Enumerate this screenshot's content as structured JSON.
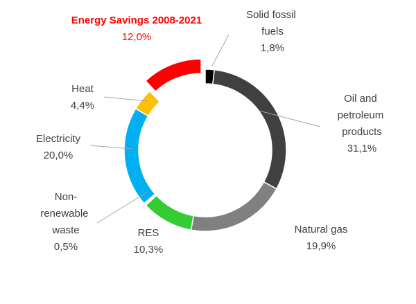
{
  "chart_data": {
    "type": "donut",
    "categories": [
      "Solid fossil fuels",
      "Oil and petroleum products",
      "Natural gas",
      "RES",
      "Non-renewable waste",
      "Electricity",
      "Heat",
      "Energy Savings 2008-2021"
    ],
    "values": [
      1.8,
      31.1,
      19.9,
      10.3,
      0.5,
      20.0,
      4.4,
      12.0
    ],
    "value_labels": [
      "1,8%",
      "31,1%",
      "19,9%",
      "10,3%",
      "0,5%",
      "20,0%",
      "4,4%",
      "12,0%"
    ],
    "colors": [
      "#000000",
      "#404040",
      "#808080",
      "#33cc33",
      "#ffffff",
      "#00b0f0",
      "#ffc000",
      "#ff0000"
    ],
    "highlight_color": "#ff0000",
    "exploded": "Energy Savings 2008-2021"
  }
}
